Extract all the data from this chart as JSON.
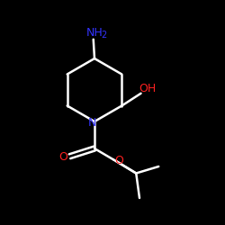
{
  "bg_color": "#000000",
  "bond_color": "#ffffff",
  "N_color": "#3333ff",
  "O_color": "#ff2020",
  "lw": 1.8,
  "figsize": [
    2.5,
    2.5
  ],
  "dpi": 100,
  "xlim": [
    0,
    10
  ],
  "ylim": [
    0,
    10
  ]
}
